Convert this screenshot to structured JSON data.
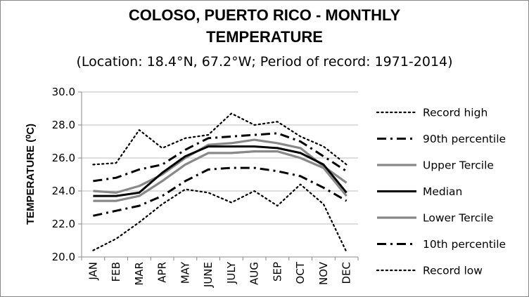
{
  "chart_data": {
    "type": "line",
    "title_line1": "COLOSO, PUERTO RICO - MONTHLY",
    "title_line2": "TEMPERATURE",
    "subtitle": "(Location: 18.4°N, 67.2°W; Period of record: 1971-2014)",
    "ylabel": "TEMPERATURE (⁰C)",
    "xlabel": "",
    "ylim": [
      20.0,
      30.0
    ],
    "yticks": [
      "20.0",
      "22.0",
      "24.0",
      "26.0",
      "28.0",
      "30.0"
    ],
    "ytick_values": [
      20,
      22,
      24,
      26,
      28,
      30
    ],
    "grid": "horizontal",
    "legend_position": "right",
    "categories": [
      "JAN",
      "FEB",
      "MAR",
      "APR",
      "MAY",
      "JUNE",
      "JULY",
      "AUG",
      "SEP",
      "OCT",
      "NOV",
      "DEC"
    ],
    "series": [
      {
        "name": "Record high",
        "style": "dotted",
        "color": "#000000",
        "values": [
          25.6,
          25.7,
          27.7,
          26.6,
          27.2,
          27.4,
          28.7,
          28.0,
          28.2,
          27.3,
          26.7,
          25.6
        ]
      },
      {
        "name": "90th percentile",
        "style": "dashdot",
        "color": "#000000",
        "values": [
          24.6,
          24.8,
          25.3,
          25.6,
          26.5,
          27.2,
          27.3,
          27.4,
          27.5,
          27.0,
          26.1,
          25.2
        ]
      },
      {
        "name": "Upper Tercile",
        "style": "solid",
        "color": "#888888",
        "values": [
          24.0,
          23.9,
          24.3,
          25.0,
          26.0,
          26.8,
          26.9,
          27.1,
          26.9,
          26.6,
          25.5,
          24.5
        ]
      },
      {
        "name": "Median",
        "style": "solid",
        "color": "#000000",
        "values": [
          23.7,
          23.7,
          23.9,
          25.1,
          26.1,
          26.7,
          26.7,
          26.7,
          26.6,
          26.3,
          25.6,
          23.9
        ]
      },
      {
        "name": "Lower Tercile",
        "style": "solid",
        "color": "#888888",
        "values": [
          23.4,
          23.4,
          23.7,
          24.6,
          25.6,
          26.3,
          26.3,
          26.4,
          26.4,
          26.0,
          25.4,
          23.7
        ]
      },
      {
        "name": "10th percentile",
        "style": "dashdot",
        "color": "#000000",
        "values": [
          22.5,
          22.8,
          23.1,
          23.7,
          24.6,
          25.3,
          25.4,
          25.4,
          25.2,
          24.9,
          24.2,
          23.4
        ]
      },
      {
        "name": "Record low",
        "style": "dotted",
        "color": "#000000",
        "values": [
          20.4,
          21.1,
          22.1,
          23.2,
          24.1,
          23.9,
          23.3,
          24.0,
          23.1,
          24.4,
          23.2,
          20.3
        ]
      }
    ]
  }
}
